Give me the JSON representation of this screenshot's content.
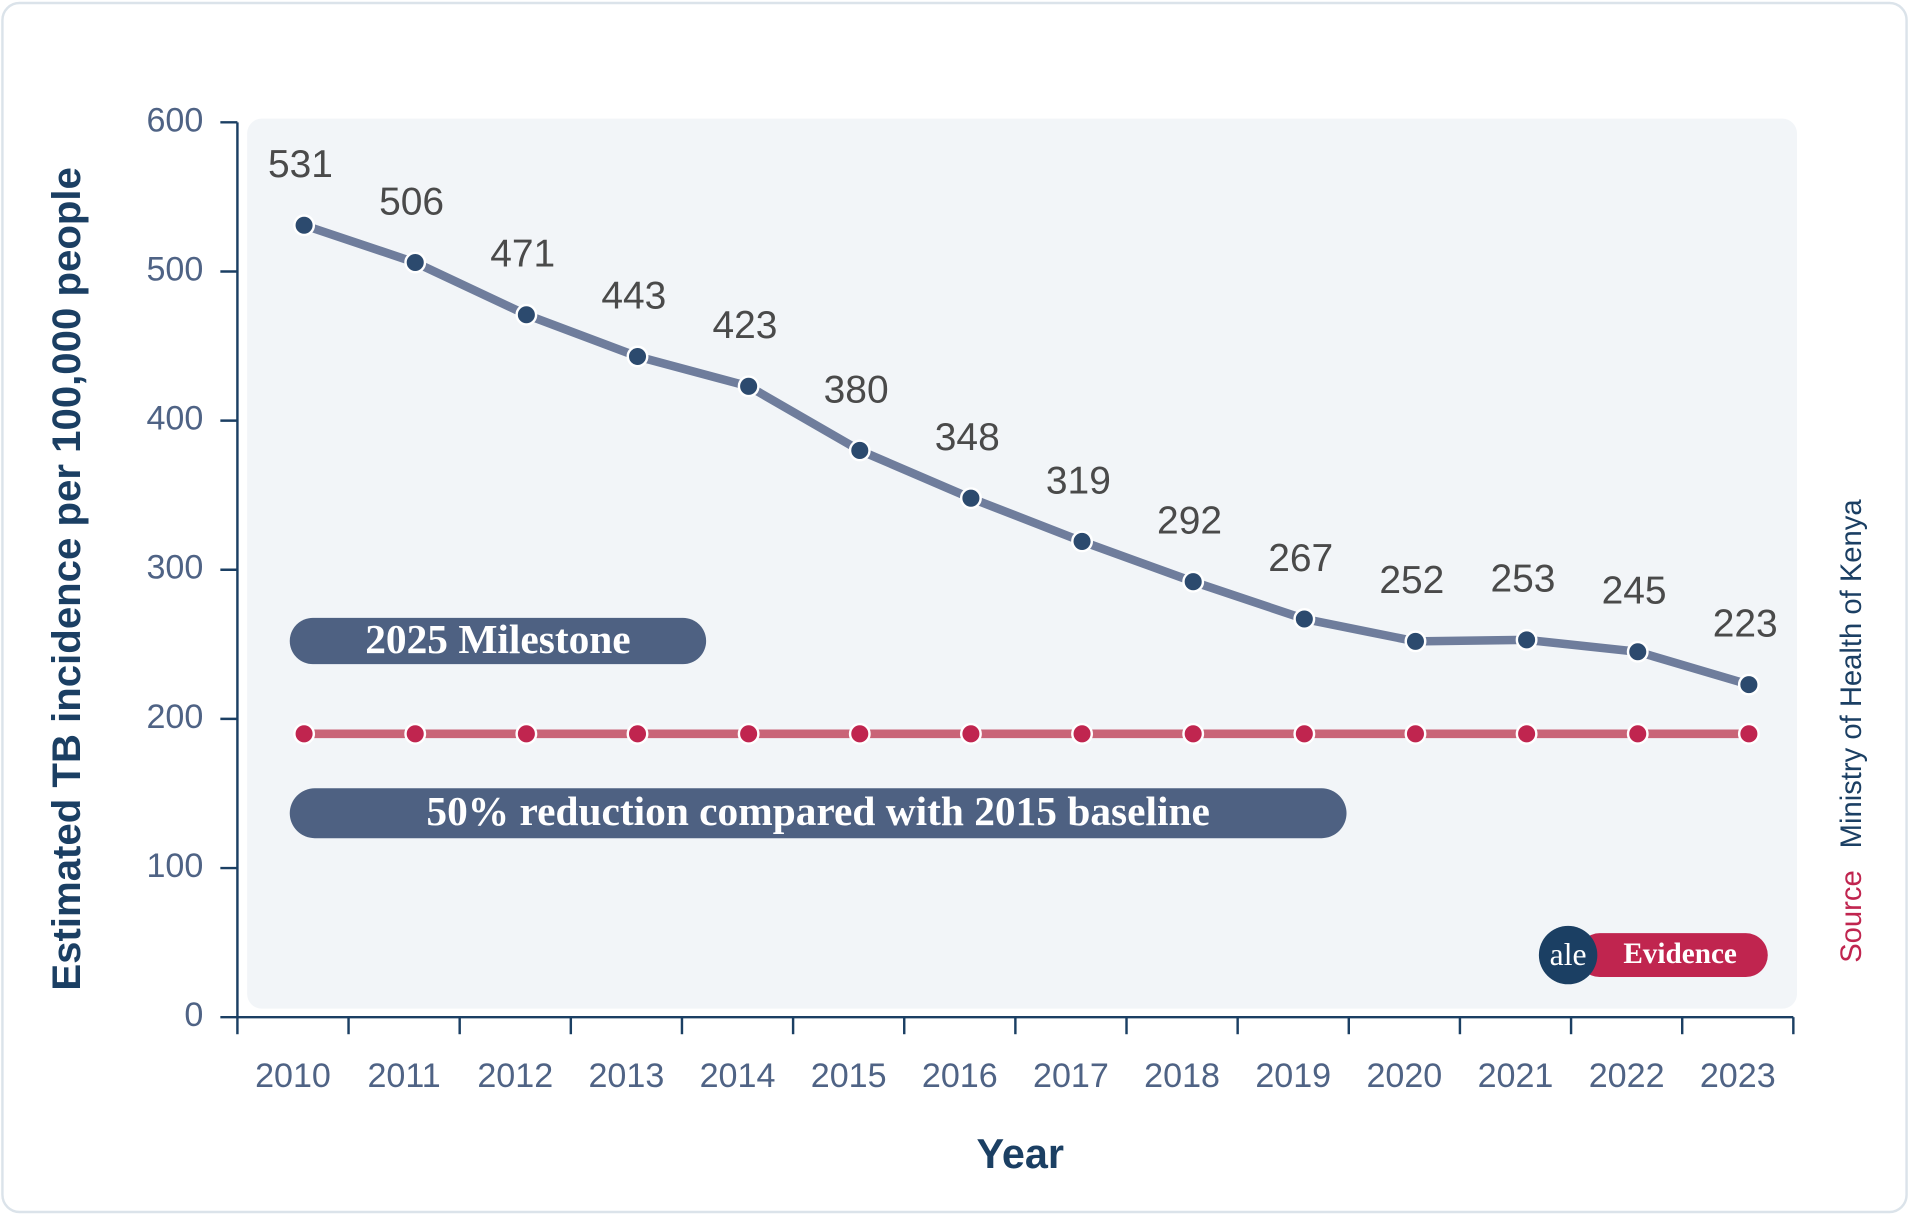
{
  "chart_data": {
    "type": "line",
    "y_label": "Estimated TB incidence per 100,000 people",
    "x_label": "Year",
    "categories": [
      "2010",
      "2011",
      "2012",
      "2013",
      "2014",
      "2015",
      "2016",
      "2017",
      "2018",
      "2019",
      "2020",
      "2021",
      "2022",
      "2023"
    ],
    "series": [
      {
        "color": "#6f7d9c",
        "marker_color": "#2c4a6e",
        "values": [
          531,
          506,
          471,
          443,
          423,
          380,
          348,
          319,
          292,
          267,
          252,
          253,
          245,
          223
        ]
      },
      {
        "name": "2025 Milestone",
        "color": "#c96477",
        "marker_color": "#c0254f",
        "values": [
          190,
          190,
          190,
          190,
          190,
          190,
          190,
          190,
          190,
          190,
          190,
          190,
          190,
          190
        ]
      }
    ],
    "annotation": "50% reduction compared with 2015 baseline",
    "ylim": [
      0,
      600
    ],
    "yticks": [
      0,
      100,
      200,
      300,
      400,
      500,
      600
    ],
    "source_label": "Source",
    "source": "Ministry of Health of Kenya",
    "brand_mark": "ale",
    "brand": "Evidence"
  }
}
